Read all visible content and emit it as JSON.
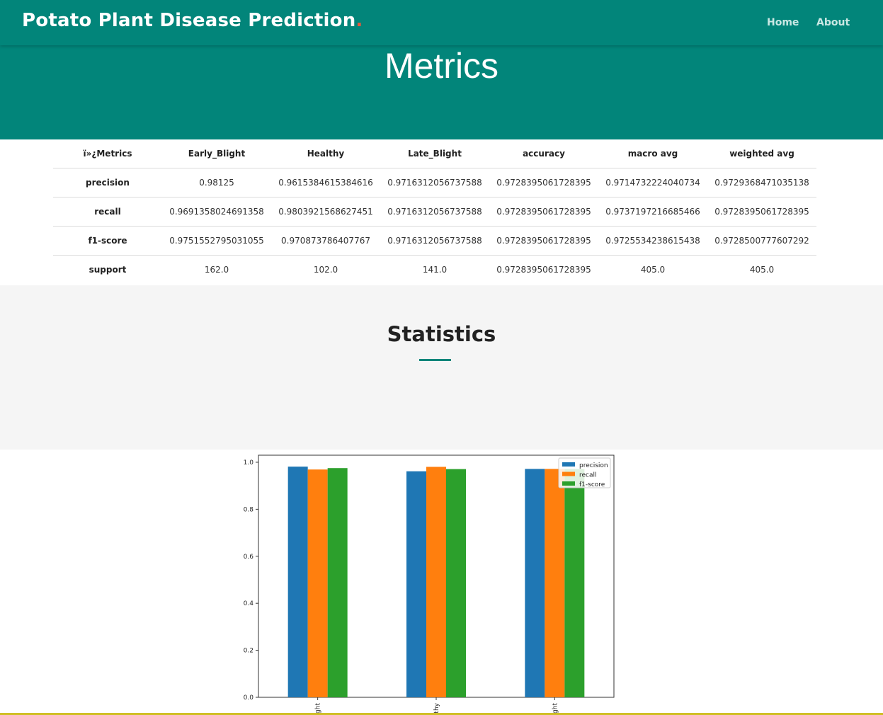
{
  "navbar": {
    "brand": "Potato Plant Disease Prediction",
    "brand_dot": ".",
    "links": {
      "home": "Home",
      "about": "About"
    }
  },
  "hero": {
    "title": "Metrics"
  },
  "metrics_table": {
    "header": [
      "ï»¿Metrics",
      "Early_Blight",
      "Healthy",
      "Late_Blight",
      "accuracy",
      "macro avg",
      "weighted avg"
    ],
    "rows": [
      {
        "label": "precision",
        "values": [
          "0.98125",
          "0.9615384615384616",
          "0.9716312056737588",
          "0.9728395061728395",
          "0.9714732224040734",
          "0.9729368471035138"
        ]
      },
      {
        "label": "recall",
        "values": [
          "0.9691358024691358",
          "0.9803921568627451",
          "0.9716312056737588",
          "0.9728395061728395",
          "0.9737197216685466",
          "0.9728395061728395"
        ]
      },
      {
        "label": "f1-score",
        "values": [
          "0.9751552795031055",
          "0.970873786407767",
          "0.9716312056737588",
          "0.9728395061728395",
          "0.9725534238615438",
          "0.9728500777607292"
        ]
      },
      {
        "label": "support",
        "values": [
          "162.0",
          "102.0",
          "141.0",
          "0.9728395061728395",
          "405.0",
          "405.0"
        ]
      }
    ]
  },
  "statistics": {
    "title": "Statistics"
  },
  "chart_data": {
    "type": "bar",
    "categories": [
      "Early_Blight",
      "Healthy",
      "Late_Blight"
    ],
    "category_labels_visible": [
      "ght",
      "thy",
      "ght"
    ],
    "series": [
      {
        "name": "precision",
        "color": "#1f77b4",
        "values": [
          0.98125,
          0.9615384615384616,
          0.9716312056737588
        ]
      },
      {
        "name": "recall",
        "color": "#ff7f0e",
        "values": [
          0.9691358024691358,
          0.9803921568627451,
          0.9716312056737588
        ]
      },
      {
        "name": "f1-score",
        "color": "#2ca02c",
        "values": [
          0.9751552795031055,
          0.970873786407767,
          0.9716312056737588
        ]
      }
    ],
    "yticks": [
      "0.0",
      "0.2",
      "0.4",
      "0.6",
      "0.8",
      "1.0"
    ],
    "ylim": [
      0,
      1.03
    ],
    "legend_position": "top-right",
    "title": "",
    "xlabel": "",
    "ylabel": ""
  },
  "colors": {
    "primary": "#02857a",
    "accent": "#e8583b"
  }
}
